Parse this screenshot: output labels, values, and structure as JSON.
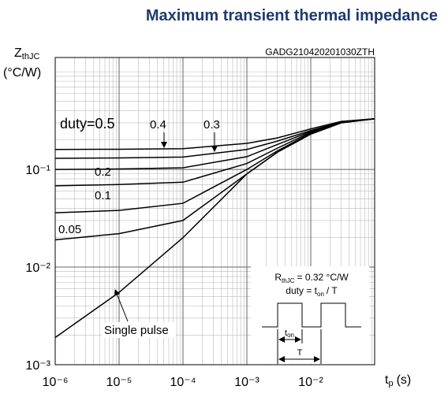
{
  "chart_data": {
    "type": "line",
    "title": "Maximum transient thermal impedance",
    "code": "GADG210420201030ZTH",
    "y_label": {
      "main": "Z",
      "sub": "thJC",
      "unit": "(°C/W)"
    },
    "x_label": {
      "main": "t",
      "sub": "p",
      "unit": "(s)"
    },
    "log_x": true,
    "log_y": true,
    "grid": true,
    "minor_grid": true,
    "xlim": [
      1e-06,
      0.1
    ],
    "ylim": [
      0.001,
      1.4
    ],
    "xticks": [
      {
        "value": 1e-06,
        "label": "10⁻⁶"
      },
      {
        "value": 1e-05,
        "label": "10⁻⁵"
      },
      {
        "value": 0.0001,
        "label": "10⁻⁴"
      },
      {
        "value": 0.001,
        "label": "10⁻³"
      },
      {
        "value": 0.01,
        "label": "10⁻²"
      }
    ],
    "yticks": [
      {
        "value": 0.001,
        "label": "10⁻³"
      },
      {
        "value": 0.01,
        "label": "10⁻²"
      },
      {
        "value": 0.1,
        "label": "10⁻¹"
      }
    ],
    "x": [
      1e-06,
      1e-05,
      0.0001,
      0.001,
      0.003,
      0.01,
      0.03,
      0.1
    ],
    "series": [
      {
        "name": "duty=0.5",
        "color": "#000000",
        "values": [
          0.16,
          0.161,
          0.163,
          0.185,
          0.21,
          0.26,
          0.31,
          0.33
        ]
      },
      {
        "name": "0.4",
        "color": "#000000",
        "values": [
          0.13,
          0.131,
          0.134,
          0.16,
          0.195,
          0.25,
          0.305,
          0.33
        ]
      },
      {
        "name": "0.3",
        "color": "#000000",
        "values": [
          0.1,
          0.101,
          0.104,
          0.135,
          0.18,
          0.245,
          0.3,
          0.33
        ]
      },
      {
        "name": "0.2",
        "color": "#000000",
        "values": [
          0.068,
          0.07,
          0.074,
          0.115,
          0.165,
          0.24,
          0.3,
          0.33
        ]
      },
      {
        "name": "0.1",
        "color": "#000000",
        "values": [
          0.036,
          0.038,
          0.045,
          0.1,
          0.155,
          0.235,
          0.3,
          0.33
        ]
      },
      {
        "name": "0.05",
        "color": "#000000",
        "values": [
          0.019,
          0.022,
          0.03,
          0.09,
          0.15,
          0.23,
          0.3,
          0.33
        ]
      },
      {
        "name": "Single pulse",
        "color": "#000000",
        "values": [
          0.0019,
          0.0055,
          0.02,
          0.09,
          0.15,
          0.23,
          0.3,
          0.33
        ]
      }
    ],
    "inset": {
      "rth": {
        "main": "R",
        "sub": "thJC",
        "rest": "= 0.32 °C/W"
      },
      "duty": {
        "pre": "duty = t",
        "sub": "on",
        "rest": "/ T"
      },
      "ton": {
        "main": "t",
        "sub": "on"
      },
      "period": "T"
    }
  }
}
